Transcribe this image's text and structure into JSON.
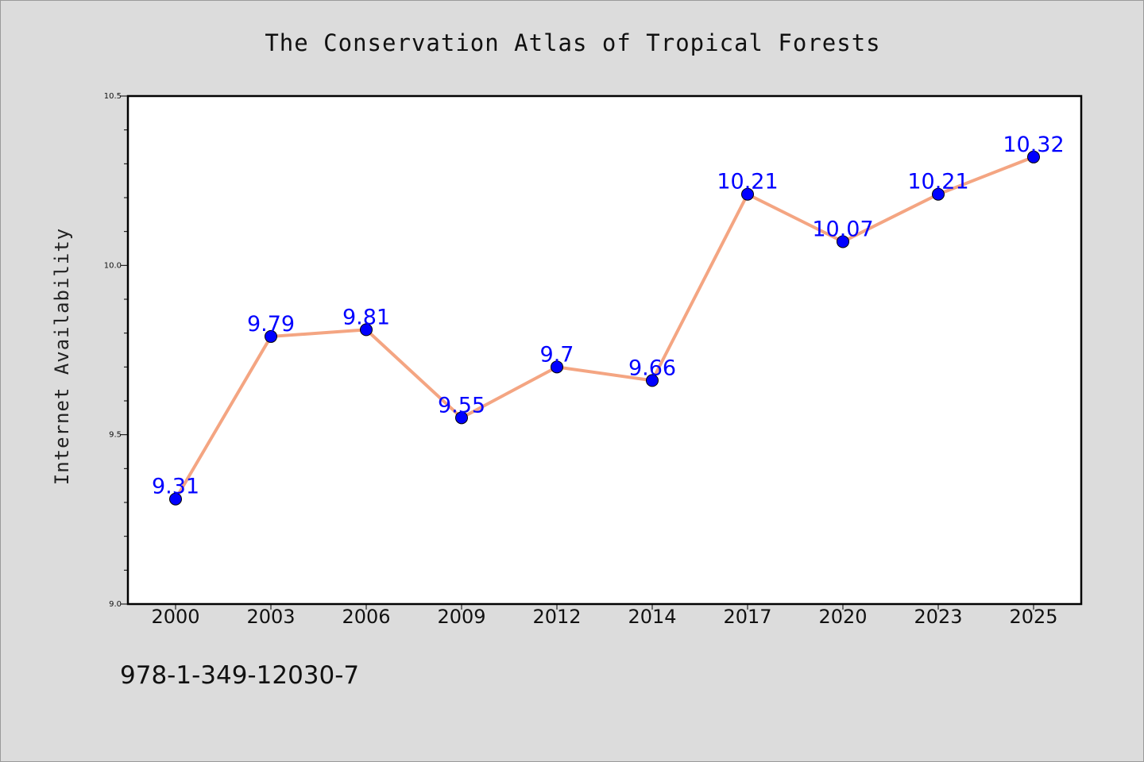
{
  "chart_data": {
    "type": "line",
    "title": "The Conservation Atlas of Tropical Forests",
    "xlabel": "",
    "ylabel": "Internet Availability",
    "categories": [
      "2000",
      "2003",
      "2006",
      "2009",
      "2012",
      "2014",
      "2017",
      "2020",
      "2023",
      "2025"
    ],
    "series": [
      {
        "values": [
          9.31,
          9.79,
          9.81,
          9.55,
          9.7,
          9.66,
          10.21,
          10.07,
          10.21,
          10.32
        ],
        "labels": [
          "9.31",
          "9.79",
          "9.81",
          "9.55",
          "9.7",
          "9.66",
          "10.21",
          "10.07",
          "10.21",
          "10.32"
        ],
        "line_color": "#f4a582",
        "marker_color": "#0000ff"
      }
    ],
    "ylim": [
      9.0,
      10.5
    ],
    "yticks": [
      "9.0",
      "9.5",
      "10.0",
      "10.5"
    ],
    "yminor_ticks": [
      9.1,
      9.2,
      9.3,
      9.4,
      9.6,
      9.7,
      9.8,
      9.9,
      10.1,
      10.2,
      10.3,
      10.4
    ],
    "grid": false,
    "legend": "none",
    "label_color": "#0000ff"
  },
  "footer": {
    "isbn": "978-1-349-12030-7"
  }
}
